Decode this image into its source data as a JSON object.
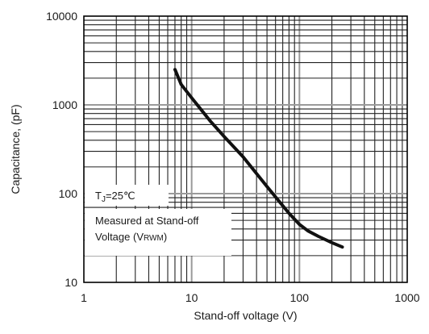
{
  "chart_data": {
    "type": "line",
    "xlabel": "Stand-off voltage (V)",
    "ylabel": "Capacitance, (pF)",
    "x_scale": "log",
    "y_scale": "log",
    "xlim": [
      1,
      1000
    ],
    "ylim": [
      10,
      10000
    ],
    "grid": true,
    "x_ticks": [
      "1",
      "10",
      "100",
      "1000"
    ],
    "y_ticks": [
      "10",
      "100",
      "1000",
      "10000"
    ],
    "series": [
      {
        "x": [
          7,
          8,
          10,
          15,
          20,
          30,
          50,
          80,
          100,
          120,
          150,
          200,
          250
        ],
        "y": [
          2500,
          1700,
          1200,
          650,
          440,
          260,
          120,
          60,
          45,
          38,
          33,
          28,
          25
        ]
      }
    ],
    "annotations": {
      "temp": {
        "prefix": "T",
        "sub": "J",
        "suffix": "=25℃"
      },
      "measured_line1": "Measured at Stand-off",
      "measured_line2": {
        "prefix": "Voltage (V",
        "sub": "RWM",
        "suffix": ")"
      }
    }
  }
}
